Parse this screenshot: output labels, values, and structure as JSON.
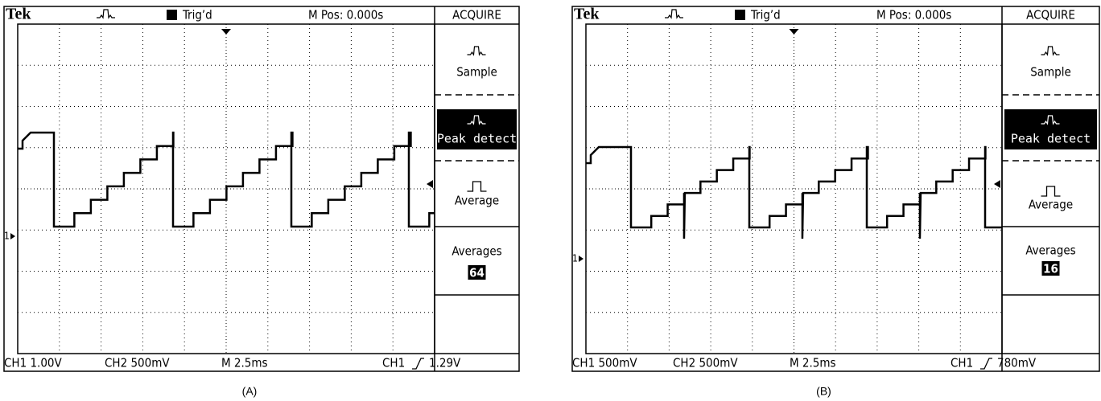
{
  "panels": [
    {
      "header": {
        "brand": "Tek",
        "trigger": "Trig’d",
        "position": "M Pos: 0.000s",
        "menu_title": "ACQUIRE"
      },
      "menu": [
        {
          "label": "Sample"
        },
        {
          "label": "Peak detect"
        },
        {
          "label": "Average"
        },
        {
          "label": "Averages",
          "value": 64
        }
      ],
      "footer": {
        "ch1": "CH1 1.00V",
        "ch2": "CH2 500mV",
        "time": "M 2.5ms",
        "trigger_source": "CH1",
        "trigger_level": "1.29V"
      },
      "caption": "(A)"
    },
    {
      "header": {
        "brand": "Tek",
        "trigger": "Trig’d",
        "position": "M Pos: 0.000s",
        "menu_title": "ACQUIRE"
      },
      "menu": [
        {
          "label": "Sample"
        },
        {
          "label": "Peak detect"
        },
        {
          "label": "Average"
        },
        {
          "label": "Averages",
          "value": 16
        }
      ],
      "footer": {
        "ch1": "CH1 500mV",
        "ch2": "CH2 500mV",
        "time": "M 2.5ms",
        "trigger_source": "CH1",
        "trigger_level": "780mV"
      },
      "caption": "(B)"
    }
  ]
}
